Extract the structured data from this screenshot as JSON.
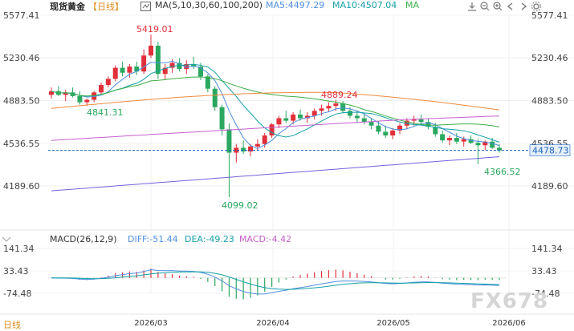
{
  "header": {
    "symbol": "现货黄金",
    "period": "【日线】",
    "ma_label": "MA(5,10,30,60,100,200)",
    "ma5_label": "MA5:4497.29",
    "ma10_label": "MA10:4507.04",
    "ma_more": "MA"
  },
  "macd": {
    "label": "MACD(26,12,9)",
    "diff_label": "DIFF:-51.44",
    "dea_label": "DEA:-49.23",
    "macd_label": "MACD:-4.42"
  },
  "bottom": {
    "period_tab": "日线"
  },
  "watermark": "FX678",
  "icons": {
    "toolbar": [
      "download-icon",
      "zoom-out-icon",
      "zoom-in-icon",
      "arrow-left-icon",
      "arrow-right-icon",
      "settings-icon"
    ],
    "indicator_toggle": "chevron-icon"
  },
  "colors": {
    "up": "#e0303a",
    "down": "#2aa860",
    "ma5": "#4f8fe0",
    "ma10": "#15a0a8",
    "ma30": "#3cae47",
    "ma60": "#f08a3c",
    "ma100": "#c65fcf",
    "ma200": "#7263dd",
    "last_price_bg": "#e6f0fb",
    "last_price_text": "#1f64bd"
  },
  "chart_data": {
    "type": "candlestick",
    "price_axis_ticks": [
      "5577.41",
      "5230.46",
      "4883.50",
      "4536.55",
      "4189.60"
    ],
    "price_axis_range": [
      4189.6,
      5577.41
    ],
    "last_price": "4478.73",
    "annotations": [
      "5419.01",
      "4889.24",
      "4841.31",
      "4099.02",
      "4366.52"
    ],
    "x_axis_labels": [
      "2026/03",
      "2026/04",
      "2026/05",
      "2026/06"
    ],
    "macd_axis_ticks": [
      "141.34",
      "33.43",
      "-74.48"
    ],
    "macd_axis_range": [
      -74.48,
      141.34
    ],
    "candles": [
      [
        4930,
        4990,
        4900,
        4960
      ],
      [
        4960,
        5000,
        4920,
        4930
      ],
      [
        4930,
        4970,
        4880,
        4950
      ],
      [
        4950,
        4990,
        4910,
        4920
      ],
      [
        4920,
        4960,
        4850,
        4870
      ],
      [
        4870,
        4900,
        4841.31,
        4890
      ],
      [
        4890,
        4960,
        4870,
        4950
      ],
      [
        4950,
        5030,
        4930,
        5010
      ],
      [
        5010,
        5080,
        4990,
        5060
      ],
      [
        5060,
        5170,
        5040,
        5150
      ],
      [
        5150,
        5200,
        5080,
        5110
      ],
      [
        5110,
        5180,
        5070,
        5160
      ],
      [
        5160,
        5200,
        5090,
        5120
      ],
      [
        5120,
        5300,
        5100,
        5250
      ],
      [
        5250,
        5419.01,
        5230,
        5330
      ],
      [
        5330,
        5360,
        5060,
        5100
      ],
      [
        5100,
        5180,
        5050,
        5150
      ],
      [
        5150,
        5220,
        5110,
        5190
      ],
      [
        5190,
        5230,
        5120,
        5140
      ],
      [
        5140,
        5210,
        5100,
        5180
      ],
      [
        5180,
        5240,
        5140,
        5160
      ],
      [
        5160,
        5190,
        5050,
        5080
      ],
      [
        5080,
        5100,
        4950,
        4980
      ],
      [
        4980,
        5000,
        4800,
        4830
      ],
      [
        4830,
        4850,
        4600,
        4650
      ],
      [
        4650,
        4700,
        4099.02,
        4460
      ],
      [
        4460,
        4530,
        4380,
        4500
      ],
      [
        4500,
        4560,
        4450,
        4470
      ],
      [
        4470,
        4530,
        4430,
        4510
      ],
      [
        4510,
        4570,
        4480,
        4530
      ],
      [
        4530,
        4620,
        4500,
        4600
      ],
      [
        4600,
        4700,
        4580,
        4690
      ],
      [
        4690,
        4760,
        4660,
        4740
      ],
      [
        4740,
        4800,
        4700,
        4720
      ],
      [
        4720,
        4790,
        4690,
        4770
      ],
      [
        4770,
        4810,
        4720,
        4740
      ],
      [
        4740,
        4790,
        4700,
        4760
      ],
      [
        4760,
        4820,
        4730,
        4800
      ],
      [
        4800,
        4850,
        4760,
        4820
      ],
      [
        4820,
        4870,
        4790,
        4840
      ],
      [
        4840,
        4889.24,
        4800,
        4860
      ],
      [
        4860,
        4880,
        4780,
        4800
      ],
      [
        4800,
        4830,
        4740,
        4760
      ],
      [
        4760,
        4800,
        4700,
        4740
      ],
      [
        4740,
        4780,
        4690,
        4710
      ],
      [
        4710,
        4740,
        4650,
        4680
      ],
      [
        4680,
        4720,
        4610,
        4630
      ],
      [
        4630,
        4680,
        4580,
        4600
      ],
      [
        4600,
        4660,
        4570,
        4640
      ],
      [
        4640,
        4700,
        4610,
        4680
      ],
      [
        4680,
        4740,
        4650,
        4720
      ],
      [
        4720,
        4760,
        4680,
        4730
      ],
      [
        4730,
        4770,
        4690,
        4710
      ],
      [
        4710,
        4740,
        4650,
        4670
      ],
      [
        4670,
        4700,
        4590,
        4610
      ],
      [
        4610,
        4640,
        4540,
        4560
      ],
      [
        4560,
        4600,
        4520,
        4580
      ],
      [
        4580,
        4620,
        4530,
        4550
      ],
      [
        4550,
        4590,
        4510,
        4570
      ],
      [
        4570,
        4600,
        4530,
        4540
      ],
      [
        4540,
        4570,
        4366.52,
        4520
      ],
      [
        4520,
        4560,
        4480,
        4550
      ],
      [
        4550,
        4580,
        4490,
        4500
      ],
      [
        4500,
        4530,
        4460,
        4478.73
      ]
    ]
  }
}
